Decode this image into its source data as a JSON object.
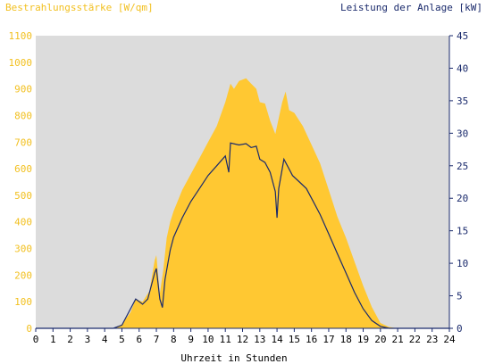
{
  "chart_data": {
    "type": "area",
    "title_left": "Bestrahlungsstärke [W/qm]",
    "title_right": "Leistung der Anlage [kW]",
    "xlabel": "Uhrzeit in Stunden",
    "xlim": [
      0,
      24
    ],
    "x_ticks": [
      "0",
      "1",
      "2",
      "3",
      "4",
      "5",
      "6",
      "7",
      "8",
      "9",
      "10",
      "11",
      "12",
      "13",
      "14",
      "15",
      "16",
      "17",
      "18",
      "19",
      "20",
      "21",
      "22",
      "23",
      "24"
    ],
    "y_left": {
      "lim": [
        0,
        1100
      ],
      "ticks": [
        "0",
        "100",
        "200",
        "300",
        "400",
        "500",
        "600",
        "700",
        "800",
        "900",
        "1000",
        "1100"
      ]
    },
    "y_right": {
      "lim": [
        0,
        45
      ],
      "ticks": [
        "0",
        "5",
        "10",
        "15",
        "20",
        "25",
        "30",
        "35",
        "40",
        "45"
      ]
    },
    "colors": {
      "plot_bg": "#dcdcdc",
      "irradiance": "#ffc832",
      "power": "#1a2a6c",
      "axis": "#1a2a6c",
      "left_text": "#f2c020"
    },
    "series": [
      {
        "name": "Bestrahlungsstärke [W/qm]",
        "axis": "left",
        "style": "area",
        "points": [
          [
            0,
            0
          ],
          [
            4.5,
            0
          ],
          [
            5,
            15
          ],
          [
            5.5,
            60
          ],
          [
            5.8,
            110
          ],
          [
            6.2,
            100
          ],
          [
            6.6,
            140
          ],
          [
            6.9,
            255
          ],
          [
            7.0,
            275
          ],
          [
            7.2,
            130
          ],
          [
            7.4,
            220
          ],
          [
            7.6,
            340
          ],
          [
            7.8,
            400
          ],
          [
            8,
            440
          ],
          [
            8.5,
            520
          ],
          [
            9,
            580
          ],
          [
            9.5,
            640
          ],
          [
            10,
            700
          ],
          [
            10.5,
            760
          ],
          [
            11,
            850
          ],
          [
            11.3,
            920
          ],
          [
            11.5,
            900
          ],
          [
            11.8,
            930
          ],
          [
            12.2,
            940
          ],
          [
            12.5,
            920
          ],
          [
            12.8,
            900
          ],
          [
            13.0,
            850
          ],
          [
            13.3,
            845
          ],
          [
            13.6,
            780
          ],
          [
            13.9,
            730
          ],
          [
            14.1,
            790
          ],
          [
            14.3,
            850
          ],
          [
            14.5,
            890
          ],
          [
            14.7,
            820
          ],
          [
            15,
            810
          ],
          [
            15.5,
            760
          ],
          [
            16,
            690
          ],
          [
            16.5,
            620
          ],
          [
            17,
            520
          ],
          [
            17.5,
            420
          ],
          [
            18,
            340
          ],
          [
            18.5,
            250
          ],
          [
            19,
            160
          ],
          [
            19.5,
            80
          ],
          [
            20,
            20
          ],
          [
            20.5,
            5
          ],
          [
            21,
            0
          ],
          [
            24,
            0
          ]
        ]
      },
      {
        "name": "Leistung der Anlage [kW]",
        "axis": "right",
        "style": "line",
        "points": [
          [
            0,
            0
          ],
          [
            4.5,
            0
          ],
          [
            5,
            0.5
          ],
          [
            5.5,
            3
          ],
          [
            5.8,
            4.5
          ],
          [
            6.2,
            3.7
          ],
          [
            6.5,
            4.5
          ],
          [
            6.9,
            8.5
          ],
          [
            7.0,
            9.2
          ],
          [
            7.2,
            4.5
          ],
          [
            7.35,
            3.2
          ],
          [
            7.5,
            7.5
          ],
          [
            7.8,
            12
          ],
          [
            8,
            14
          ],
          [
            8.5,
            17
          ],
          [
            9,
            19.5
          ],
          [
            9.5,
            21.5
          ],
          [
            10,
            23.5
          ],
          [
            10.5,
            25
          ],
          [
            11,
            26.5
          ],
          [
            11.2,
            24
          ],
          [
            11.3,
            28.5
          ],
          [
            11.8,
            28.2
          ],
          [
            12.2,
            28.4
          ],
          [
            12.5,
            27.8
          ],
          [
            12.8,
            28
          ],
          [
            13.0,
            26
          ],
          [
            13.3,
            25.5
          ],
          [
            13.6,
            24
          ],
          [
            13.9,
            21
          ],
          [
            14.0,
            17
          ],
          [
            14.1,
            21.5
          ],
          [
            14.4,
            26
          ],
          [
            14.6,
            25
          ],
          [
            14.9,
            23.5
          ],
          [
            15.3,
            22.5
          ],
          [
            15.7,
            21.5
          ],
          [
            16,
            20
          ],
          [
            16.5,
            17.5
          ],
          [
            17,
            14.5
          ],
          [
            17.5,
            11.5
          ],
          [
            18,
            8.5
          ],
          [
            18.5,
            5.5
          ],
          [
            19,
            3
          ],
          [
            19.5,
            1.2
          ],
          [
            20,
            0.3
          ],
          [
            20.5,
            0
          ],
          [
            24,
            0
          ]
        ]
      }
    ]
  }
}
